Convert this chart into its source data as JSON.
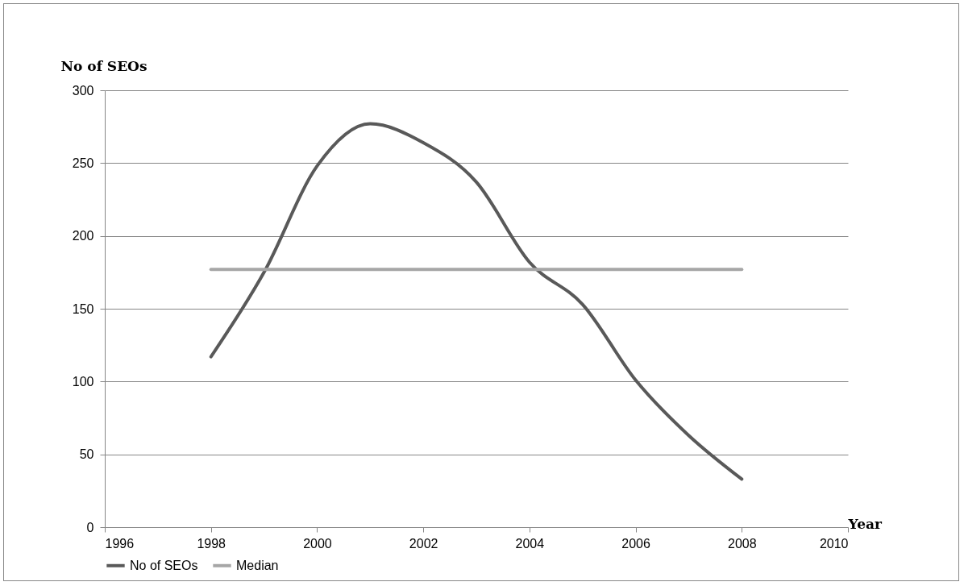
{
  "chart_data": {
    "type": "line",
    "xlabel": "Year",
    "ylabel": "No of SEOs",
    "xlim": [
      1996,
      2010
    ],
    "xticks": [
      1996,
      1998,
      2000,
      2002,
      2004,
      2006,
      2008,
      2010
    ],
    "ylim": [
      0,
      300
    ],
    "yticks": [
      0,
      50,
      100,
      150,
      200,
      250,
      300
    ],
    "grid": "y",
    "legend": "bottom",
    "marker": "none",
    "line_style": "solid",
    "series": [
      {
        "name": "No of SEOs",
        "color": "#595959",
        "x": [
          1998,
          1999,
          2000,
          2001,
          2002,
          2003,
          2004,
          2005,
          2006,
          2007,
          2008
        ],
        "values": [
          117,
          175,
          248,
          277,
          264,
          237,
          182,
          153,
          101,
          63,
          33
        ]
      },
      {
        "name": "Median",
        "color": "#a6a6a6",
        "x": [
          1998,
          2008
        ],
        "values": [
          177,
          177
        ]
      }
    ]
  }
}
